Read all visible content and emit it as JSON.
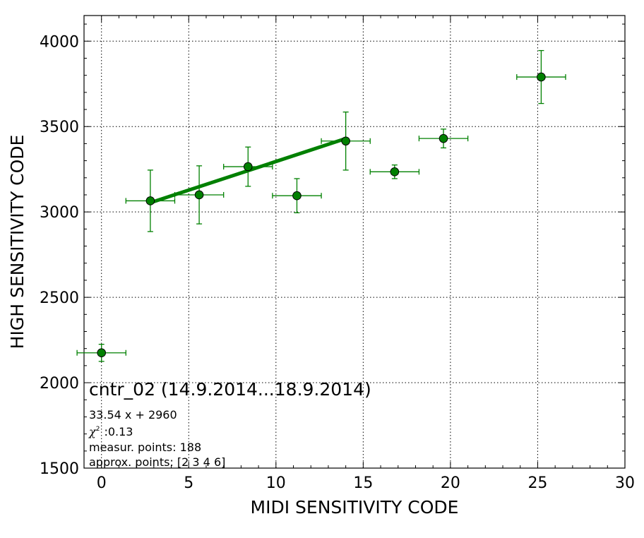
{
  "chart_data": {
    "type": "scatter",
    "xlabel": "MIDI SENSITIVITY CODE",
    "ylabel": "HIGH SENSITIVITY CODE",
    "xlim": [
      -1,
      30
    ],
    "ylim": [
      1500,
      4150
    ],
    "x_ticks": [
      0,
      5,
      10,
      15,
      20,
      25,
      30
    ],
    "y_ticks": [
      1500,
      2000,
      2500,
      3000,
      3500,
      4000
    ],
    "grid": true,
    "marker_color": "#008000",
    "fit_color": "#008000",
    "points": [
      {
        "x": 0.0,
        "y": 2175,
        "xerr": 1.4,
        "yerr": 50
      },
      {
        "x": 2.8,
        "y": 3065,
        "xerr": 1.4,
        "yerr": 180
      },
      {
        "x": 5.6,
        "y": 3100,
        "xerr": 1.4,
        "yerr": 170
      },
      {
        "x": 8.4,
        "y": 3265,
        "xerr": 1.4,
        "yerr": 115
      },
      {
        "x": 11.2,
        "y": 3095,
        "xerr": 1.4,
        "yerr": 100
      },
      {
        "x": 14.0,
        "y": 3415,
        "xerr": 1.4,
        "yerr": 170
      },
      {
        "x": 16.8,
        "y": 3235,
        "xerr": 1.4,
        "yerr": 40
      },
      {
        "x": 19.6,
        "y": 3430,
        "xerr": 1.4,
        "yerr": 55
      },
      {
        "x": 25.2,
        "y": 3790,
        "xerr": 1.4,
        "yerr": 155
      }
    ],
    "fit": {
      "x_start": 2.8,
      "x_end": 14.0,
      "slope": 33.54,
      "intercept": 2960
    },
    "annotation": {
      "title": "cntr_02 (14.9.2014...18.9.2014)",
      "equation": "33.54 x + 2960",
      "chi2_symbol": "χ",
      "chi2_sup": "2",
      "chi2_value": ":0.13",
      "measur_points": "measur. points: 188",
      "approx_points": "approx. points: [2 3 4 6]"
    }
  }
}
